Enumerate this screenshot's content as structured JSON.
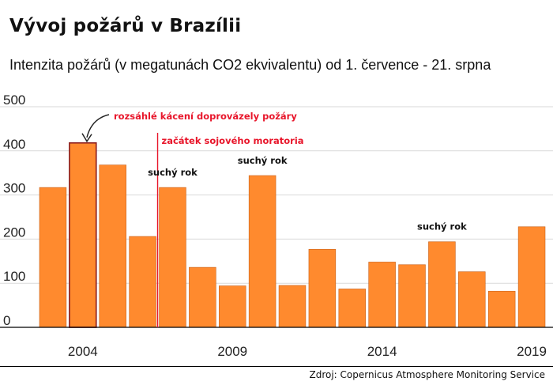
{
  "header": {
    "title": "Vývoj požárů v Brazílii",
    "subtitle": "Intenzita požárů (v megatunách CO2 ekvivalentu) od 1. července - 21. srpna"
  },
  "footer": {
    "source": "Zdroj: Copernicus Atmosphere Monitoring Service"
  },
  "colors": {
    "bar": "#ff8a2e",
    "bar_stroke": "#c9611a",
    "highlight_stroke": "#8a1c1c",
    "grid": "#d9d9d9",
    "annotation_red": "#e8162b",
    "text": "#111111"
  },
  "chart_data": {
    "type": "bar",
    "title": "Vývoj požárů v Brazílii",
    "subtitle": "Intenzita požárů (v megatunách CO2 ekvivalentu) od 1. července - 21. srpna",
    "categories": [
      "2003",
      "2004",
      "2005",
      "2006",
      "2007",
      "2008",
      "2009",
      "2010",
      "2011",
      "2012",
      "2013",
      "2014",
      "2015",
      "2016",
      "2017",
      "2018",
      "2019"
    ],
    "values": [
      317,
      418,
      368,
      206,
      317,
      136,
      94,
      344,
      95,
      177,
      87,
      148,
      142,
      194,
      126,
      82,
      228
    ],
    "highlight_category": "2004",
    "ylim": [
      0,
      500
    ],
    "yticks": [
      0,
      100,
      200,
      300,
      400,
      500
    ],
    "xtick_labels": [
      "2004",
      "2009",
      "2014",
      "2019"
    ],
    "grid": true,
    "annotations": [
      {
        "text": "rozsáhlé kácení doprovázely požáry",
        "category": "2004",
        "style": "red-arrow"
      },
      {
        "text": "začátek sojového moratoria",
        "value_year": 2006.5,
        "style": "red-line"
      },
      {
        "text": "suchý rok",
        "category": "2007",
        "style": "black"
      },
      {
        "text": "suchý rok",
        "category": "2010",
        "style": "black"
      },
      {
        "text": "suchý rok",
        "category": "2016",
        "style": "black"
      }
    ]
  }
}
